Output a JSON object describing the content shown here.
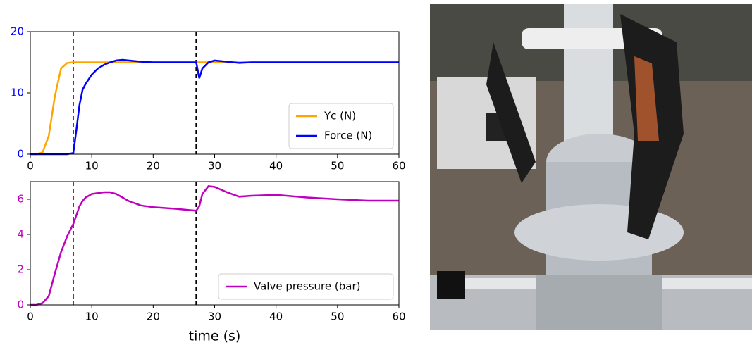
{
  "chart_data": [
    {
      "type": "line",
      "x": [
        0,
        1,
        2,
        3,
        4,
        5,
        6,
        7,
        7.5,
        8,
        8.5,
        9,
        10,
        11,
        12,
        13,
        14,
        15,
        16,
        18,
        20,
        22,
        24,
        26,
        27,
        27.5,
        28,
        29,
        30,
        32,
        34,
        36,
        40,
        45,
        50,
        55,
        60
      ],
      "series": [
        {
          "name": "Yc (N)",
          "color": "#ffa500",
          "values": [
            0,
            0,
            0.3,
            3,
            9.5,
            14,
            14.9,
            15,
            15,
            15,
            15,
            15,
            15,
            15,
            15,
            15,
            15,
            15,
            15,
            15,
            15,
            15,
            15,
            15,
            15,
            15,
            15,
            15,
            15,
            15,
            15,
            15,
            15,
            15,
            15,
            15,
            15
          ]
        },
        {
          "name": "Force (N)",
          "color": "#0000ff",
          "values": [
            0,
            0,
            0,
            0,
            0,
            0,
            0,
            0.2,
            4,
            8,
            10.5,
            11.5,
            13,
            14,
            14.6,
            15,
            15.3,
            15.4,
            15.3,
            15.1,
            15,
            15,
            15,
            15,
            15,
            12.4,
            14,
            15,
            15.3,
            15.1,
            14.9,
            15,
            15,
            15,
            15,
            15,
            15
          ]
        }
      ],
      "vlines": [
        {
          "x": 7,
          "color": "#ff0000"
        },
        {
          "x": 27,
          "color": "#000000"
        }
      ],
      "xlim": [
        0,
        60
      ],
      "xticks": [
        0,
        10,
        20,
        30,
        40,
        50,
        60
      ],
      "ylim": [
        0,
        20
      ],
      "yticks": [
        0,
        10,
        20
      ],
      "ytick_color": "#0000ff",
      "legend": "lower right"
    },
    {
      "type": "line",
      "x": [
        0,
        1,
        2,
        3,
        4,
        5,
        6,
        7,
        7.5,
        8,
        8.5,
        9,
        10,
        11,
        12,
        13,
        14,
        15,
        16,
        18,
        20,
        22,
        24,
        26,
        27,
        27.5,
        28,
        29,
        30,
        32,
        34,
        36,
        40,
        45,
        50,
        55,
        60
      ],
      "series": [
        {
          "name": "Valve pressure (bar)",
          "color": "#bf00bf",
          "values": [
            0,
            0,
            0.1,
            0.5,
            1.8,
            3.0,
            3.9,
            4.6,
            5.1,
            5.6,
            5.9,
            6.1,
            6.3,
            6.35,
            6.4,
            6.4,
            6.3,
            6.1,
            5.9,
            5.65,
            5.55,
            5.5,
            5.45,
            5.38,
            5.35,
            5.6,
            6.3,
            6.75,
            6.7,
            6.4,
            6.15,
            6.2,
            6.25,
            6.1,
            6.0,
            5.92,
            5.92
          ]
        }
      ],
      "vlines": [
        {
          "x": 7,
          "color": "#ff0000"
        },
        {
          "x": 27,
          "color": "#000000"
        }
      ],
      "xlim": [
        0,
        60
      ],
      "xticks": [
        0,
        10,
        20,
        30,
        40,
        50,
        60
      ],
      "ylim": [
        0,
        7
      ],
      "yticks": [
        0,
        2,
        4,
        6
      ],
      "ytick_color": "#bf00bf",
      "xlabel": "time (s)",
      "legend": "lower right"
    }
  ]
}
